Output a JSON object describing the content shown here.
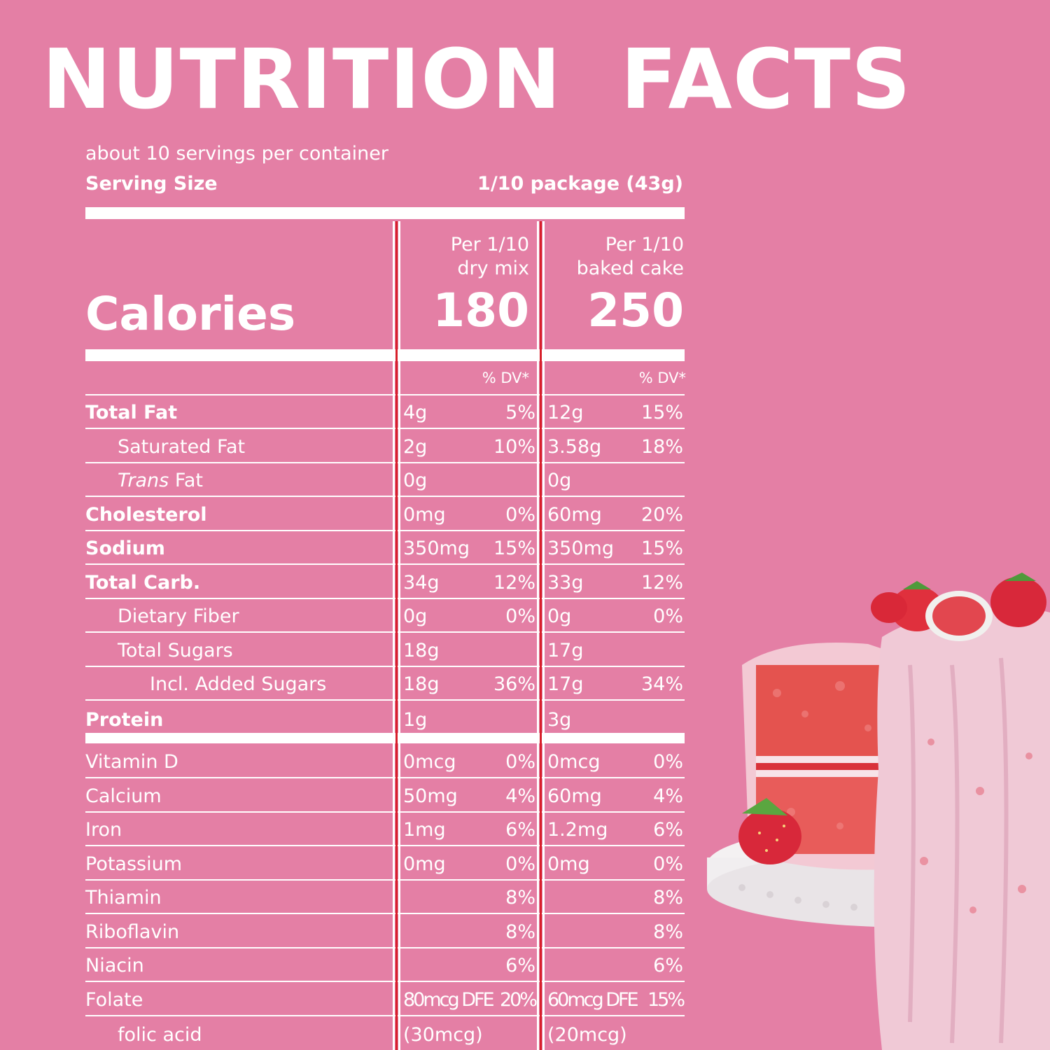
{
  "title": "NUTRITION  FACTS",
  "servings": "about 10 servings per container",
  "serving_size_label": "Serving Size",
  "serving_size_value": "1/10 package (43g)",
  "columns": {
    "dry": "Per 1/10\ndry mix",
    "baked": "Per 1/10\nbaked cake"
  },
  "calories_label": "Calories",
  "calories": {
    "dry": "180",
    "baked": "250"
  },
  "dv_header": "% DV*",
  "rows": [
    {
      "label": "Total Fat",
      "dry_amt": "4g",
      "dry_dv": "5%",
      "baked_amt": "12g",
      "baked_dv": "15%"
    },
    {
      "label": "Saturated Fat",
      "dry_amt": "2g",
      "dry_dv": "10%",
      "baked_amt": "3.58g",
      "baked_dv": "18%"
    },
    {
      "label_italic": "Trans",
      "label": " Fat",
      "dry_amt": "0g",
      "dry_dv": "",
      "baked_amt": "0g",
      "baked_dv": ""
    },
    {
      "label": "Cholesterol",
      "dry_amt": "0mg",
      "dry_dv": "0%",
      "baked_amt": "60mg",
      "baked_dv": "20%"
    },
    {
      "label": "Sodium",
      "dry_amt": "350mg",
      "dry_dv": "15%",
      "baked_amt": "350mg",
      "baked_dv": "15%"
    },
    {
      "label": "Total Carb.",
      "dry_amt": "34g",
      "dry_dv": "12%",
      "baked_amt": "33g",
      "baked_dv": "12%"
    },
    {
      "label": "Dietary Fiber",
      "dry_amt": "0g",
      "dry_dv": "0%",
      "baked_amt": "0g",
      "baked_dv": "0%"
    },
    {
      "label": "Total Sugars",
      "dry_amt": "18g",
      "dry_dv": "",
      "baked_amt": "17g",
      "baked_dv": ""
    },
    {
      "label": "Incl. Added Sugars",
      "dry_amt": "18g",
      "dry_dv": "36%",
      "baked_amt": "17g",
      "baked_dv": "34%"
    },
    {
      "label": "Protein",
      "dry_amt": "1g",
      "dry_dv": "",
      "baked_amt": "3g",
      "baked_dv": ""
    }
  ],
  "vitamins": [
    {
      "label": "Vitamin D",
      "dry_amt": "0mcg",
      "dry_dv": "0%",
      "baked_amt": "0mcg",
      "baked_dv": "0%"
    },
    {
      "label": "Calcium",
      "dry_amt": "50mg",
      "dry_dv": "4%",
      "baked_amt": "60mg",
      "baked_dv": "4%"
    },
    {
      "label": "Iron",
      "dry_amt": "1mg",
      "dry_dv": "6%",
      "baked_amt": "1.2mg",
      "baked_dv": "6%"
    },
    {
      "label": "Potassium",
      "dry_amt": "0mg",
      "dry_dv": "0%",
      "baked_amt": "0mg",
      "baked_dv": "0%"
    },
    {
      "label": "Thiamin",
      "dry_amt": "",
      "dry_dv": "8%",
      "baked_amt": "",
      "baked_dv": "8%"
    },
    {
      "label": "Riboflavin",
      "dry_amt": "",
      "dry_dv": "8%",
      "baked_amt": "",
      "baked_dv": "8%"
    },
    {
      "label": "Niacin",
      "dry_amt": "",
      "dry_dv": "6%",
      "baked_amt": "",
      "baked_dv": "6%"
    },
    {
      "label": "Folate",
      "dry_amt": "80mcg DFE",
      "dry_dv": "20%",
      "baked_amt": "60mcg DFE",
      "baked_dv": "15%"
    },
    {
      "label": "folic acid",
      "dry_amt": "(30mcg)",
      "dry_dv": "",
      "baked_amt": "(20mcg)",
      "baked_dv": ""
    }
  ],
  "colors": {
    "background": "#e47fa5",
    "text": "#ffffff",
    "divider_accent": "#d7202b"
  }
}
